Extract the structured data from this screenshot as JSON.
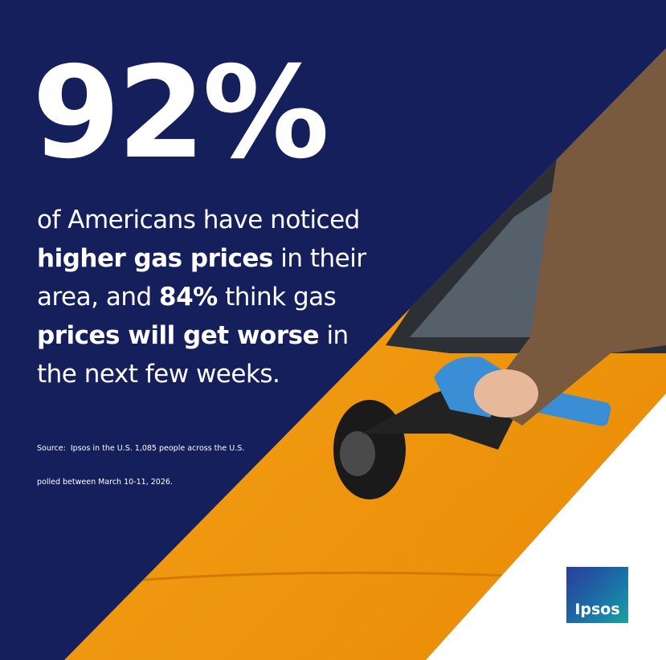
{
  "headline": "92%",
  "body": {
    "lines": [
      [
        "of Americans have noticed"
      ],
      [
        "higher gas prices",
        " in their"
      ],
      [
        "area, and ",
        "84%",
        " think gas"
      ],
      [
        "prices will get worse",
        " in"
      ],
      [
        "the next few weeks."
      ]
    ]
  },
  "source": [
    "Source:  Ipsos in the U.S. 1,085 people across the U.S.",
    "polled between March 10-11, 2026."
  ],
  "logo": "Ipsos"
}
